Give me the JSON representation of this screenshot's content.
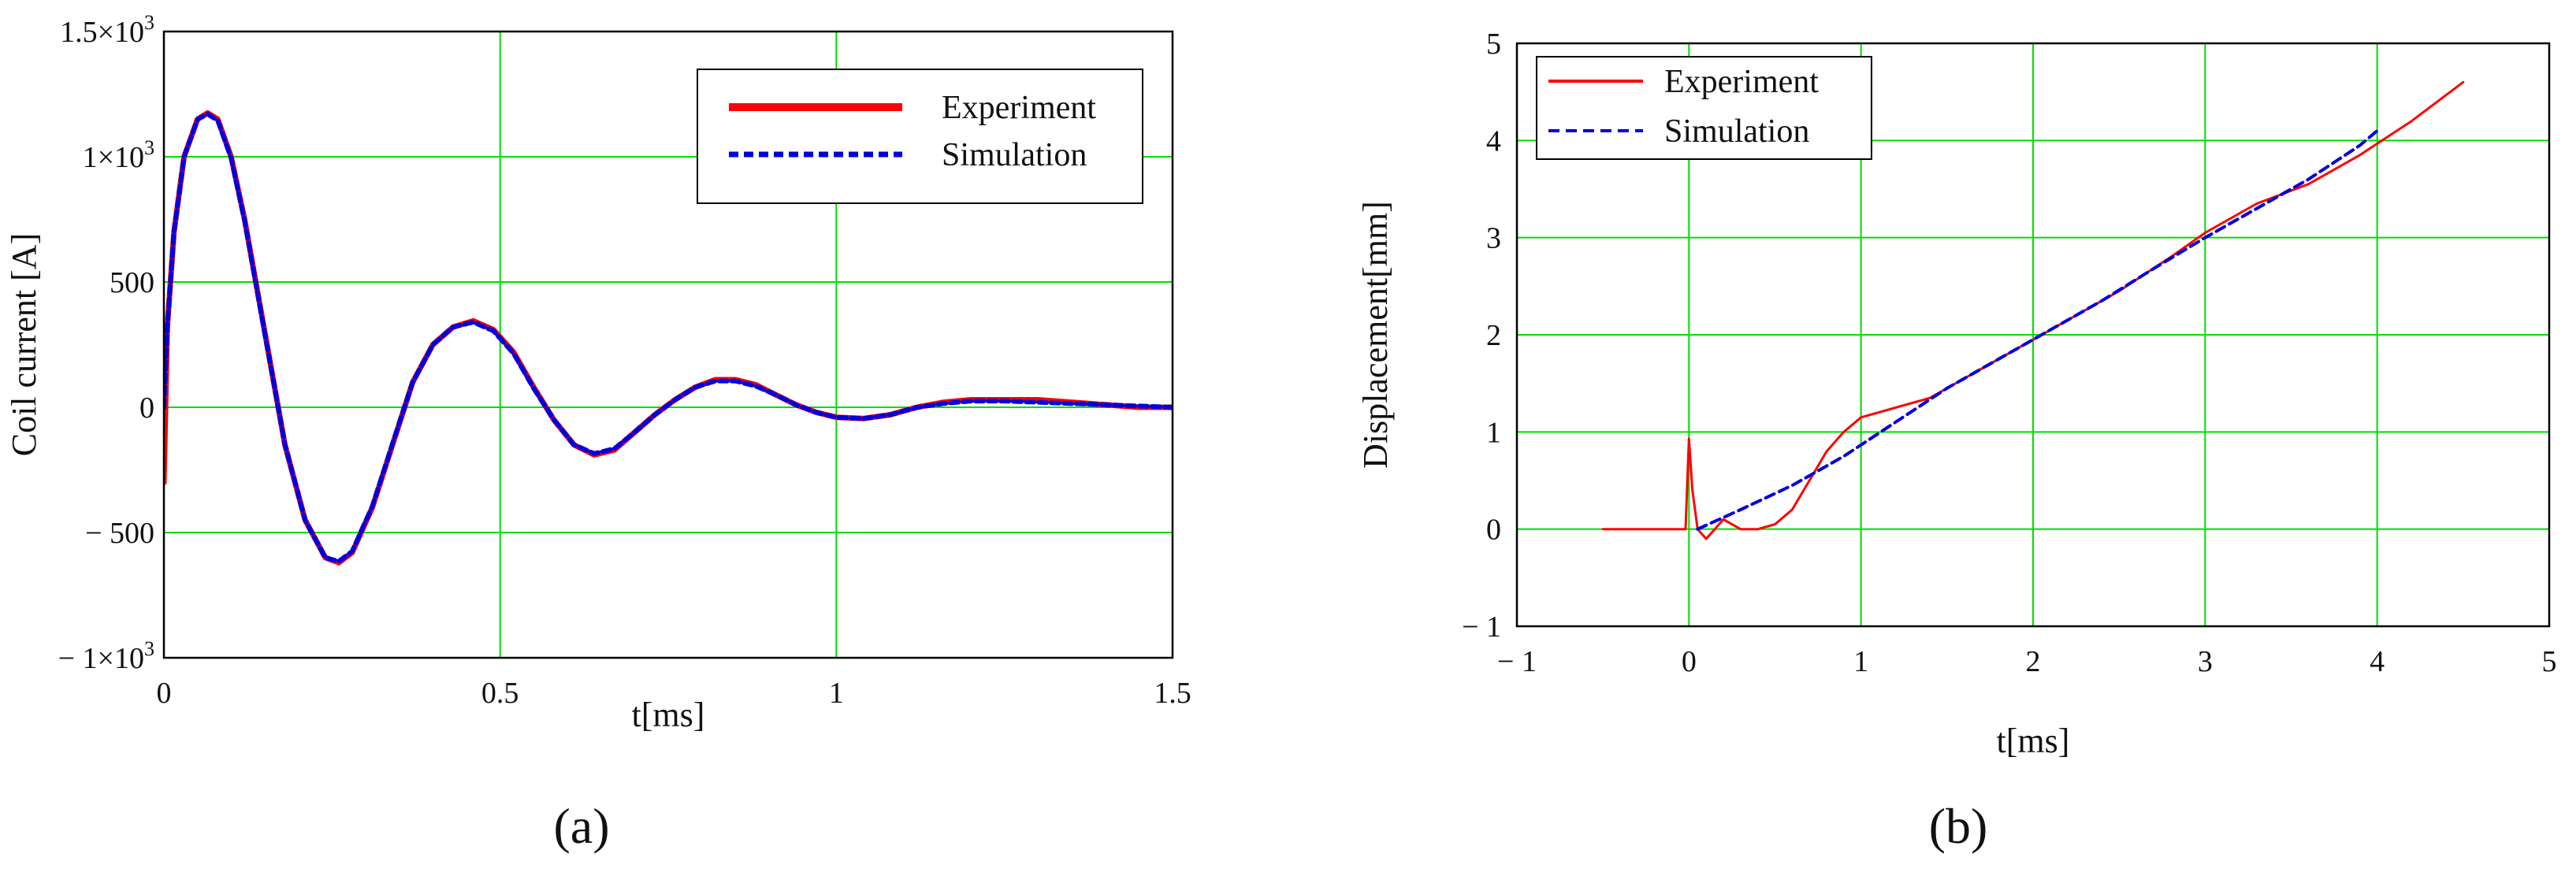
{
  "chart_data": [
    {
      "type": "line",
      "panel_label": "(a)",
      "xlabel": "t[ms]",
      "ylabel": "Coil current [A]",
      "xlim": [
        0,
        1.5
      ],
      "ylim": [
        -1000,
        1500
      ],
      "x_ticks": [
        0,
        0.5,
        1,
        1.5
      ],
      "x_tick_labels": [
        "0",
        "0.5",
        "1",
        "1.5"
      ],
      "y_ticks": [
        -1000,
        -500,
        0,
        500,
        1000,
        1500
      ],
      "y_tick_labels": [
        {
          "base": "− 1×10",
          "exp": "3"
        },
        {
          "base": "− 500",
          "exp": ""
        },
        {
          "base": "0",
          "exp": ""
        },
        {
          "base": "500",
          "exp": ""
        },
        {
          "base": "1×10",
          "exp": "3"
        },
        {
          "base": "1.5×10",
          "exp": "3"
        }
      ],
      "grid": true,
      "legend_position": "top-right",
      "series": [
        {
          "name": "Experiment",
          "color": "#ff0000",
          "style": "solid",
          "x": [
            0,
            0.005,
            0.015,
            0.03,
            0.05,
            0.065,
            0.08,
            0.1,
            0.12,
            0.15,
            0.18,
            0.21,
            0.24,
            0.26,
            0.28,
            0.31,
            0.34,
            0.37,
            0.4,
            0.43,
            0.46,
            0.49,
            0.52,
            0.55,
            0.58,
            0.61,
            0.64,
            0.67,
            0.7,
            0.73,
            0.76,
            0.79,
            0.82,
            0.85,
            0.88,
            0.91,
            0.94,
            0.97,
            1.0,
            1.04,
            1.08,
            1.12,
            1.16,
            1.2,
            1.25,
            1.3,
            1.35,
            1.4,
            1.45,
            1.5
          ],
          "y": [
            -300,
            320,
            700,
            1000,
            1150,
            1175,
            1150,
            1000,
            750,
            300,
            -150,
            -450,
            -600,
            -620,
            -580,
            -400,
            -150,
            100,
            250,
            320,
            345,
            310,
            220,
            80,
            -50,
            -150,
            -190,
            -170,
            -100,
            -30,
            30,
            80,
            110,
            110,
            90,
            50,
            10,
            -20,
            -40,
            -45,
            -30,
            0,
            20,
            30,
            30,
            30,
            20,
            10,
            0,
            0
          ]
        },
        {
          "name": "Simulation",
          "color": "#0000dd",
          "style": "dashed",
          "x": [
            0,
            0.005,
            0.015,
            0.03,
            0.05,
            0.065,
            0.08,
            0.1,
            0.12,
            0.15,
            0.18,
            0.21,
            0.24,
            0.26,
            0.28,
            0.31,
            0.34,
            0.37,
            0.4,
            0.43,
            0.46,
            0.49,
            0.52,
            0.55,
            0.58,
            0.61,
            0.64,
            0.67,
            0.7,
            0.73,
            0.76,
            0.79,
            0.82,
            0.85,
            0.88,
            0.91,
            0.94,
            0.97,
            1.0,
            1.04,
            1.08,
            1.12,
            1.16,
            1.2,
            1.25,
            1.3,
            1.35,
            1.4,
            1.45,
            1.5
          ],
          "y": [
            0,
            320,
            700,
            1000,
            1150,
            1170,
            1145,
            995,
            745,
            295,
            -150,
            -450,
            -600,
            -615,
            -575,
            -395,
            -145,
            100,
            250,
            320,
            340,
            305,
            215,
            75,
            -50,
            -150,
            -185,
            -165,
            -100,
            -30,
            30,
            80,
            105,
            105,
            85,
            50,
            10,
            -20,
            -40,
            -45,
            -30,
            0,
            15,
            25,
            25,
            20,
            15,
            10,
            5,
            0
          ]
        }
      ]
    },
    {
      "type": "line",
      "panel_label": "(b)",
      "xlabel": "t[ms]",
      "ylabel": "Displacement[mm]",
      "xlim": [
        -1,
        5
      ],
      "ylim": [
        -1,
        5
      ],
      "x_ticks": [
        -1,
        0,
        1,
        2,
        3,
        4,
        5
      ],
      "x_tick_labels": [
        "− 1",
        "0",
        "1",
        "2",
        "3",
        "4",
        "5"
      ],
      "y_ticks": [
        -1,
        0,
        1,
        2,
        3,
        4,
        5
      ],
      "y_tick_labels": [
        "− 1",
        "0",
        "1",
        "2",
        "3",
        "4",
        "5"
      ],
      "grid": true,
      "legend_position": "top-left",
      "series": [
        {
          "name": "Experiment",
          "color": "#ff0000",
          "style": "solid",
          "x": [
            -0.5,
            -0.3,
            -0.1,
            -0.02,
            0.0,
            0.02,
            0.05,
            0.1,
            0.15,
            0.2,
            0.3,
            0.4,
            0.5,
            0.6,
            0.7,
            0.8,
            0.9,
            1.0,
            1.1,
            1.2,
            1.4,
            1.6,
            1.8,
            2.0,
            2.2,
            2.5,
            2.8,
            3.0,
            3.3,
            3.6,
            3.9,
            4.2,
            4.5
          ],
          "y": [
            0,
            0,
            0,
            0,
            0.93,
            0.4,
            0.0,
            -0.1,
            0.0,
            0.1,
            0.0,
            0.0,
            0.05,
            0.2,
            0.5,
            0.8,
            1.0,
            1.15,
            1.2,
            1.25,
            1.35,
            1.55,
            1.75,
            1.95,
            2.15,
            2.45,
            2.8,
            3.05,
            3.35,
            3.55,
            3.85,
            4.2,
            4.6
          ]
        },
        {
          "name": "Simulation",
          "color": "#0000dd",
          "style": "dashed",
          "x": [
            0.05,
            0.3,
            0.6,
            0.9,
            1.2,
            1.5,
            1.8,
            2.1,
            2.4,
            2.7,
            3.0,
            3.3,
            3.6,
            3.9,
            4.0
          ],
          "y": [
            0.0,
            0.2,
            0.45,
            0.75,
            1.1,
            1.45,
            1.75,
            2.05,
            2.35,
            2.68,
            3.0,
            3.3,
            3.6,
            3.95,
            4.1
          ]
        }
      ]
    }
  ]
}
